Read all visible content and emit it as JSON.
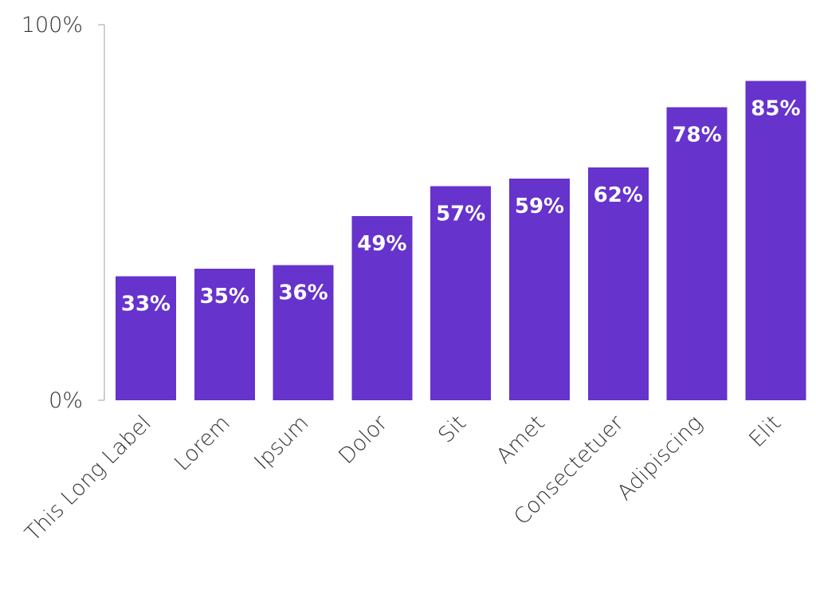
{
  "chart_data": {
    "type": "bar",
    "categories": [
      "This Long Label",
      "Lorem",
      "Ipsum",
      "Dolor",
      "Sit",
      "Amet",
      "Consectetuer",
      "Adipiscing",
      "Elit"
    ],
    "values": [
      33,
      35,
      36,
      49,
      57,
      59,
      62,
      78,
      85
    ],
    "data_labels": [
      "33%",
      "35%",
      "36%",
      "49%",
      "57%",
      "59%",
      "62%",
      "78%",
      "85%"
    ],
    "ylim": [
      0,
      100
    ],
    "y_ticks": [
      {
        "value": 100,
        "label": "100%"
      },
      {
        "value": 0,
        "label": "0%"
      }
    ],
    "grid": false,
    "legend": "none",
    "bar_color": "#6633cc",
    "label_color": "#ffffff"
  }
}
